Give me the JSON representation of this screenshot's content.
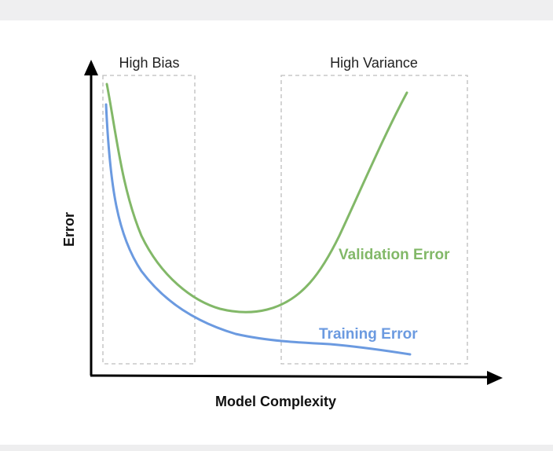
{
  "diagram": {
    "regions": {
      "high_bias": "High Bias",
      "high_variance": "High Variance"
    },
    "axes": {
      "y_label": "Error",
      "x_label": "Model Complexity"
    },
    "curves": {
      "validation": {
        "label": "Validation Error",
        "color": "#82b868"
      },
      "training": {
        "label": "Training Error",
        "color": "#6b9ae0"
      }
    },
    "colors": {
      "axis": "#000000",
      "region_border": "#bdbdbd"
    }
  }
}
